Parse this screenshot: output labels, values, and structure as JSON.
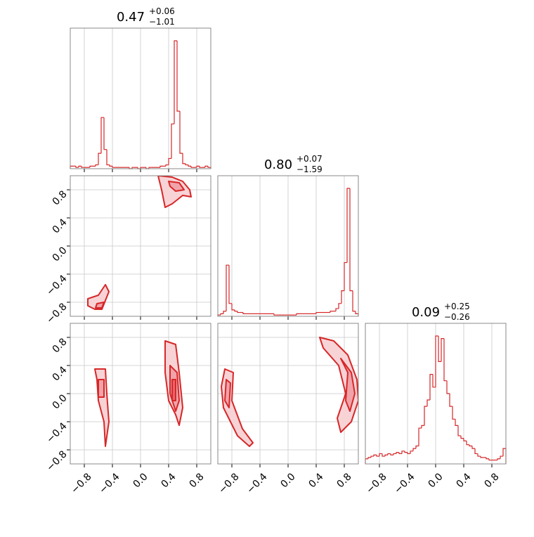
{
  "chart_data": {
    "type": "corner",
    "color": "#d62728",
    "fill_colors": [
      "#f8d3d6",
      "#f0a3a9",
      "#e5646d"
    ],
    "xlim": [
      -1,
      1
    ],
    "ylim": [
      -1,
      1
    ],
    "ticks": [
      {
        "value": -0.8,
        "label": "−0.8"
      },
      {
        "value": -0.4,
        "label": "−0.4"
      },
      {
        "value": 0,
        "label": "0.0"
      },
      0.4,
      0.8
    ],
    "bins": [
      -1,
      -0.96,
      -0.92,
      -0.88,
      -0.84,
      -0.8,
      -0.76,
      -0.72,
      -0.68,
      -0.64,
      -0.6,
      -0.56,
      -0.52,
      -0.48,
      -0.44,
      -0.4,
      -0.36,
      -0.32,
      -0.28,
      -0.24,
      -0.2,
      -0.16,
      -0.12,
      -0.08,
      -0.04,
      0,
      0.04,
      0.08,
      0.12,
      0.16,
      0.2,
      0.24,
      0.28,
      0.32,
      0.36,
      0.4,
      0.44,
      0.48,
      0.52,
      0.56,
      0.6,
      0.64,
      0.68,
      0.72,
      0.76,
      0.8,
      0.84,
      0.88,
      0.92,
      0.96,
      1
    ],
    "histograms": [
      {
        "title": "0.47",
        "title_upper": "+0.06",
        "title_lower": "−1.01",
        "counts": [
          2,
          2,
          1,
          2,
          1,
          1,
          1,
          2,
          2,
          3,
          12,
          40,
          15,
          3,
          2,
          1,
          1,
          1,
          1,
          1,
          1,
          0,
          1,
          1,
          0,
          1,
          1,
          0,
          1,
          1,
          1,
          1,
          2,
          2,
          3,
          8,
          35,
          100,
          45,
          12,
          4,
          3,
          2,
          1,
          1,
          2,
          1,
          1,
          2,
          1
        ]
      },
      {
        "title": "0.80",
        "title_upper": "+0.07",
        "title_lower": "−1.59",
        "counts": [
          1,
          2,
          4,
          40,
          10,
          5,
          4,
          3,
          3,
          2,
          2,
          2,
          2,
          2,
          2,
          2,
          2,
          2,
          2,
          2,
          1,
          1,
          1,
          1,
          1,
          1,
          1,
          1,
          2,
          2,
          2,
          2,
          2,
          2,
          2,
          3,
          3,
          3,
          3,
          3,
          4,
          4,
          6,
          10,
          20,
          42,
          100,
          20,
          4,
          2
        ]
      },
      {
        "title": "0.09",
        "title_upper": "+0.25",
        "title_lower": "−0.26",
        "counts": [
          4,
          5,
          6,
          7,
          6,
          8,
          6,
          7,
          8,
          7,
          8,
          9,
          8,
          10,
          9,
          8,
          10,
          12,
          14,
          28,
          30,
          45,
          50,
          70,
          60,
          100,
          80,
          98,
          65,
          55,
          45,
          35,
          30,
          22,
          20,
          18,
          15,
          14,
          12,
          8,
          6,
          5,
          5,
          4,
          3,
          3,
          3,
          4,
          6,
          12
        ]
      }
    ],
    "pairs": [
      {
        "contours": [
          [
            {
              "x": [
                0.25,
                0.45,
                0.6,
                0.7,
                0.72,
                0.6,
                0.45,
                0.35,
                0.3
              ],
              "y": [
                1.0,
                0.98,
                0.92,
                0.8,
                0.7,
                0.72,
                0.6,
                0.55,
                0.8
              ]
            },
            {
              "x": [
                -0.75,
                -0.6,
                -0.5,
                -0.45,
                -0.55,
                -0.65,
                -0.75
              ],
              "y": [
                -0.75,
                -0.7,
                -0.55,
                -0.65,
                -0.9,
                -0.9,
                -0.85
              ]
            }
          ],
          [
            {
              "x": [
                0.4,
                0.55,
                0.62,
                0.5,
                0.42
              ],
              "y": [
                0.92,
                0.9,
                0.8,
                0.78,
                0.85
              ]
            },
            {
              "x": [
                -0.62,
                -0.52,
                -0.55,
                -0.64
              ],
              "y": [
                -0.82,
                -0.8,
                -0.88,
                -0.88
              ]
            }
          ]
        ]
      },
      {
        "contours": [
          [
            {
              "x": [
                -0.65,
                -0.5,
                -0.48,
                -0.45,
                -0.5,
                -0.52,
                -0.6,
                -0.62
              ],
              "y": [
                0.35,
                0.35,
                0.0,
                -0.4,
                -0.75,
                -0.4,
                -0.1,
                0.2
              ]
            },
            {
              "x": [
                0.35,
                0.5,
                0.55,
                0.6,
                0.55,
                0.5,
                0.4,
                0.35
              ],
              "y": [
                0.75,
                0.7,
                0.3,
                -0.2,
                -0.45,
                -0.3,
                -0.1,
                0.3
              ]
            }
          ],
          [
            {
              "x": [
                -0.6,
                -0.52,
                -0.52,
                -0.6
              ],
              "y": [
                0.2,
                0.2,
                -0.05,
                -0.05
              ]
            },
            {
              "x": [
                0.42,
                0.52,
                0.55,
                0.5,
                0.42
              ],
              "y": [
                0.4,
                0.3,
                -0.1,
                -0.25,
                0.0
              ]
            }
          ],
          [
            {
              "x": [
                0.45,
                0.5,
                0.5,
                0.45
              ],
              "y": [
                0.2,
                0.2,
                -0.1,
                -0.1
              ]
            }
          ]
        ]
      },
      {
        "contours": [
          [
            {
              "x": [
                -0.9,
                -0.78,
                -0.8,
                -0.65,
                -0.5,
                -0.55,
                -0.72,
                -0.92,
                -0.95
              ],
              "y": [
                0.35,
                0.3,
                -0.1,
                -0.5,
                -0.7,
                -0.75,
                -0.6,
                -0.2,
                0.1
              ]
            },
            {
              "x": [
                0.45,
                0.65,
                0.85,
                0.98,
                1.0,
                0.9,
                0.75,
                0.7,
                0.82,
                0.72,
                0.5
              ],
              "y": [
                0.8,
                0.75,
                0.55,
                0.2,
                -0.1,
                -0.4,
                -0.55,
                -0.35,
                0.0,
                0.4,
                0.65
              ]
            }
          ],
          [
            {
              "x": [
                -0.88,
                -0.82,
                -0.84,
                -0.9
              ],
              "y": [
                0.2,
                0.15,
                -0.2,
                -0.1
              ]
            },
            {
              "x": [
                0.75,
                0.9,
                0.95,
                0.88,
                0.82,
                0.85
              ],
              "y": [
                0.5,
                0.3,
                0.0,
                -0.25,
                -0.1,
                0.3
              ]
            }
          ]
        ]
      }
    ]
  }
}
